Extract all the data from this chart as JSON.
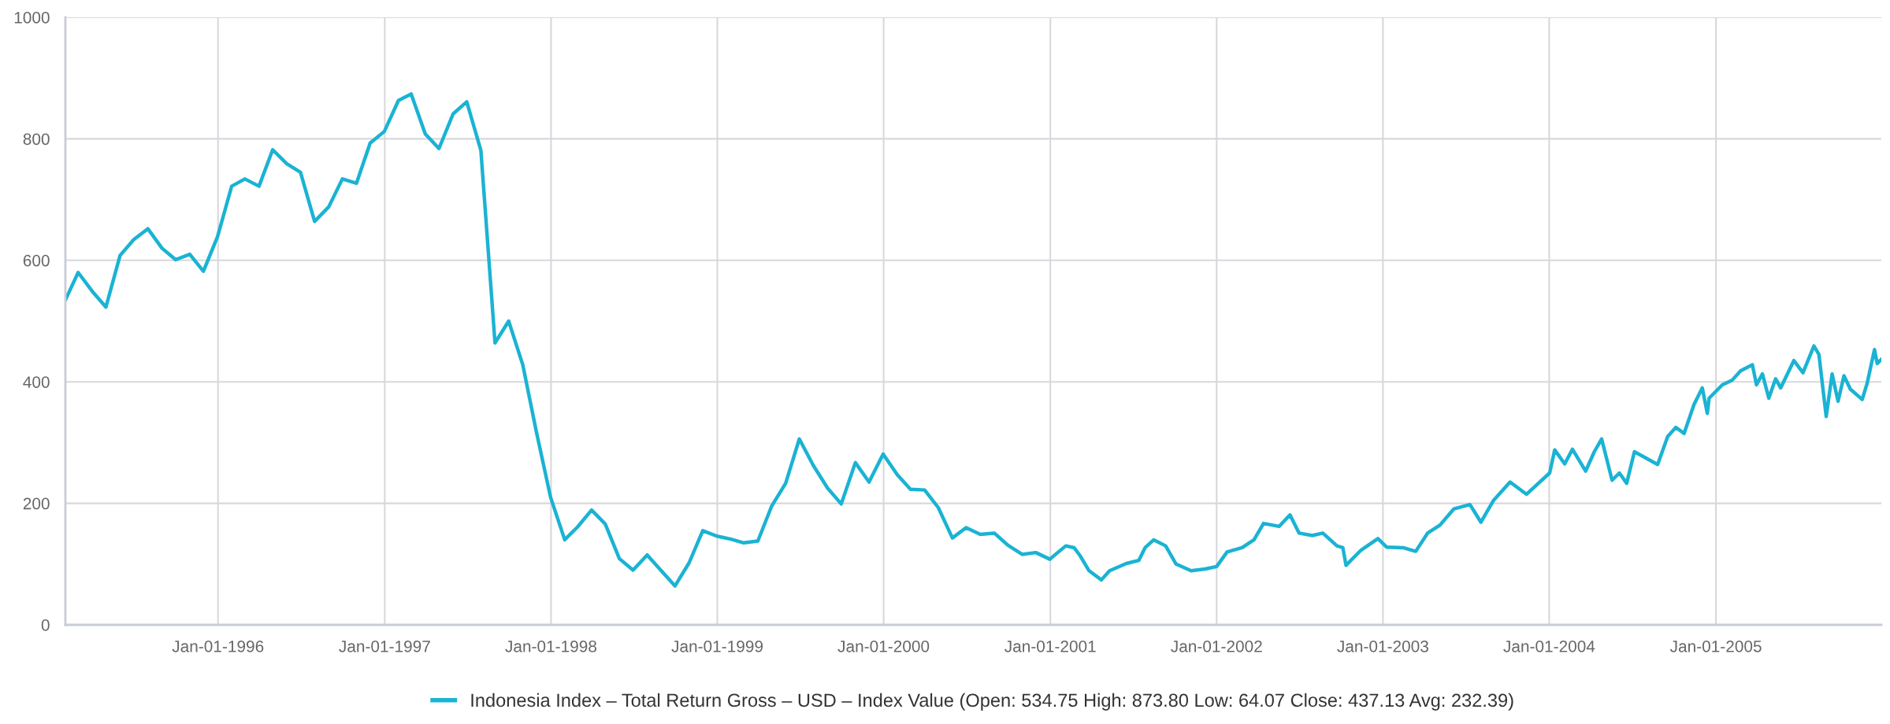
{
  "chart_data": {
    "type": "line",
    "x": [
      "1995-01-31",
      "1995-02-28",
      "1995-03-31",
      "1995-04-30",
      "1995-05-31",
      "1995-06-30",
      "1995-07-31",
      "1995-08-31",
      "1995-09-30",
      "1995-10-31",
      "1995-11-30",
      "1995-12-31",
      "1996-01-31",
      "1996-02-29",
      "1996-03-31",
      "1996-04-30",
      "1996-05-31",
      "1996-06-30",
      "1996-07-31",
      "1996-08-31",
      "1996-09-30",
      "1996-10-31",
      "1996-11-30",
      "1996-12-31",
      "1997-01-31",
      "1997-02-28",
      "1997-03-31",
      "1997-04-30",
      "1997-05-31",
      "1997-06-30",
      "1997-07-31",
      "1997-08-31",
      "1997-09-30",
      "1997-10-31",
      "1997-11-30",
      "1997-12-31",
      "1998-01-31",
      "1998-02-28",
      "1998-03-31",
      "1998-04-30",
      "1998-05-31",
      "1998-06-30",
      "1998-07-31",
      "1998-08-31",
      "1998-09-30",
      "1998-10-31",
      "1998-11-30",
      "1998-12-31",
      "1999-01-31",
      "1999-02-28",
      "1999-03-31",
      "1999-04-30",
      "1999-05-31",
      "1999-06-30",
      "1999-07-31",
      "1999-08-31",
      "1999-09-30",
      "1999-10-31",
      "1999-11-30",
      "1999-12-31",
      "2000-01-31",
      "2000-02-29",
      "2000-03-31",
      "2000-04-30",
      "2000-05-31",
      "2000-06-30",
      "2000-07-31",
      "2000-08-31",
      "2000-09-30",
      "2000-10-31",
      "2000-11-30",
      "2000-12-31",
      "2001-01-14",
      "2001-02-04",
      "2001-02-22",
      "2001-03-08",
      "2001-03-27",
      "2001-04-23",
      "2001-05-11",
      "2001-06-17",
      "2001-07-14",
      "2001-07-28",
      "2001-08-16",
      "2001-09-11",
      "2001-10-04",
      "2001-11-06",
      "2001-12-07",
      "2002-01-01",
      "2002-01-24",
      "2002-02-26",
      "2002-03-24",
      "2002-04-14",
      "2002-05-18",
      "2002-06-11",
      "2002-07-01",
      "2002-07-30",
      "2002-08-22",
      "2002-09-22",
      "2002-10-05",
      "2002-10-12",
      "2002-11-14",
      "2002-12-21",
      "2003-01-09",
      "2003-02-14",
      "2003-03-14",
      "2003-04-09",
      "2003-05-06",
      "2003-06-06",
      "2003-07-11",
      "2003-08-04",
      "2003-09-01",
      "2003-10-07",
      "2003-11-12",
      "2004-01-02",
      "2004-01-13",
      "2004-02-04",
      "2004-02-21",
      "2004-03-21",
      "2004-04-09",
      "2004-04-25",
      "2004-05-18",
      "2004-06-03",
      "2004-06-19",
      "2004-07-06",
      "2004-08-26",
      "2004-09-17",
      "2004-10-05",
      "2004-10-23",
      "2004-11-14",
      "2004-12-02",
      "2004-12-13",
      "2004-12-17",
      "2005-01-15",
      "2005-02-06",
      "2005-02-24",
      "2005-03-22",
      "2005-03-31",
      "2005-04-13",
      "2005-04-27",
      "2005-05-12",
      "2005-05-23",
      "2005-06-21",
      "2005-07-11",
      "2005-08-04",
      "2005-08-15",
      "2005-08-31",
      "2005-09-13",
      "2005-09-26",
      "2005-10-09",
      "2005-10-23",
      "2005-11-18",
      "2005-11-29",
      "2005-12-15",
      "2005-12-21",
      "2005-12-30"
    ],
    "series": [
      {
        "name": "Indonesia Index – Total Return Gross – USD – Index Value (Open: 534.75 High: 873.80 Low: 64.07 Close: 437.13 Avg: 232.39)",
        "color": "#1ab3d3",
        "values": [
          534.75,
          580,
          549,
          523,
          608,
          634,
          652,
          620,
          601,
          610,
          582,
          639,
          722,
          734,
          722,
          782,
          759,
          745,
          664,
          688,
          734,
          727,
          793,
          812,
          863,
          873.8,
          808,
          784,
          841,
          861,
          781,
          464,
          500,
          428,
          317,
          210,
          140,
          161,
          189,
          166,
          109,
          90,
          115,
          89,
          64.07,
          102,
          155,
          146,
          141,
          135,
          138,
          195,
          233,
          306,
          262,
          225,
          199,
          267,
          235,
          281,
          247,
          223,
          222,
          193,
          143,
          160,
          149,
          151,
          131,
          116,
          119,
          108,
          117,
          130,
          127,
          113,
          89,
          74,
          89,
          101,
          106,
          127,
          140,
          130,
          100,
          89,
          92,
          96,
          120,
          127,
          140,
          167,
          162,
          181,
          151,
          147,
          151,
          130,
          127,
          98,
          123,
          142,
          128,
          127,
          121,
          151,
          164,
          191,
          198,
          169,
          205,
          235,
          215,
          250,
          288,
          265,
          289,
          253,
          285,
          306,
          238,
          250,
          233,
          285,
          264,
          310,
          325,
          315,
          363,
          390,
          348,
          373,
          395,
          403,
          418,
          428,
          395,
          413,
          373,
          405,
          390,
          435,
          415,
          459,
          445,
          343,
          413,
          368,
          410,
          388,
          371,
          398,
          453,
          430,
          437.13
        ]
      }
    ],
    "xlim": [
      "1995-01-31",
      "2005-12-30"
    ],
    "xticks": [
      {
        "value": "1996-01-01",
        "label": "Jan-01-1996"
      },
      {
        "value": "1997-01-01",
        "label": "Jan-01-1997"
      },
      {
        "value": "1998-01-01",
        "label": "Jan-01-1998"
      },
      {
        "value": "1999-01-01",
        "label": "Jan-01-1999"
      },
      {
        "value": "2000-01-01",
        "label": "Jan-01-2000"
      },
      {
        "value": "2001-01-01",
        "label": "Jan-01-2001"
      },
      {
        "value": "2002-01-01",
        "label": "Jan-01-2002"
      },
      {
        "value": "2003-01-01",
        "label": "Jan-01-2003"
      },
      {
        "value": "2004-01-01",
        "label": "Jan-01-2004"
      },
      {
        "value": "2005-01-01",
        "label": "Jan-01-2005"
      }
    ],
    "ylim": [
      0,
      1000
    ],
    "yticks": [
      0,
      200,
      400,
      600,
      800,
      1000
    ],
    "grid": true,
    "legend": "bottom",
    "marker": "none",
    "line_style": "solid"
  }
}
